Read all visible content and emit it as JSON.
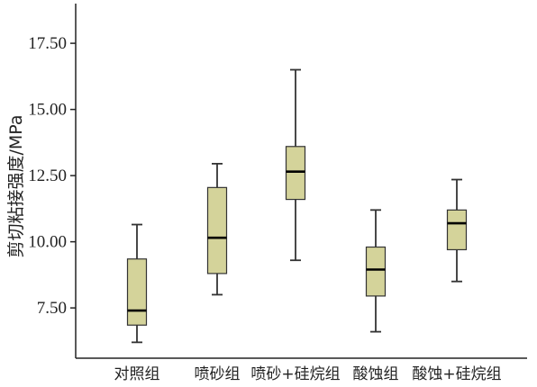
{
  "chart_data": {
    "type": "box",
    "xlabel": "",
    "ylabel": "剪切粘接强度/MPa",
    "ylim": [
      5.6,
      19.0
    ],
    "yticks": [
      7.5,
      10.0,
      12.5,
      15.0,
      17.5
    ],
    "ytick_labels": [
      "7.50",
      "10.00",
      "12.50",
      "15.00",
      "17.50"
    ],
    "categories": [
      "对照组",
      "喷砂组",
      "喷砂+硅烷组",
      "酸蚀组",
      "酸蚀+硅烷组"
    ],
    "box_fill": "#d4d39a",
    "box_stroke": "#333333",
    "boxes": [
      {
        "min": 6.2,
        "q1": 6.85,
        "median": 7.4,
        "q3": 9.35,
        "max": 10.65
      },
      {
        "min": 8.0,
        "q1": 8.8,
        "median": 10.15,
        "q3": 12.05,
        "max": 12.95
      },
      {
        "min": 9.3,
        "q1": 11.6,
        "median": 12.65,
        "q3": 13.6,
        "max": 16.5
      },
      {
        "min": 6.6,
        "q1": 7.95,
        "median": 8.95,
        "q3": 9.8,
        "max": 11.2
      },
      {
        "min": 8.5,
        "q1": 9.7,
        "median": 10.7,
        "q3": 11.2,
        "max": 12.35
      }
    ],
    "grid": false,
    "legend": "none"
  }
}
